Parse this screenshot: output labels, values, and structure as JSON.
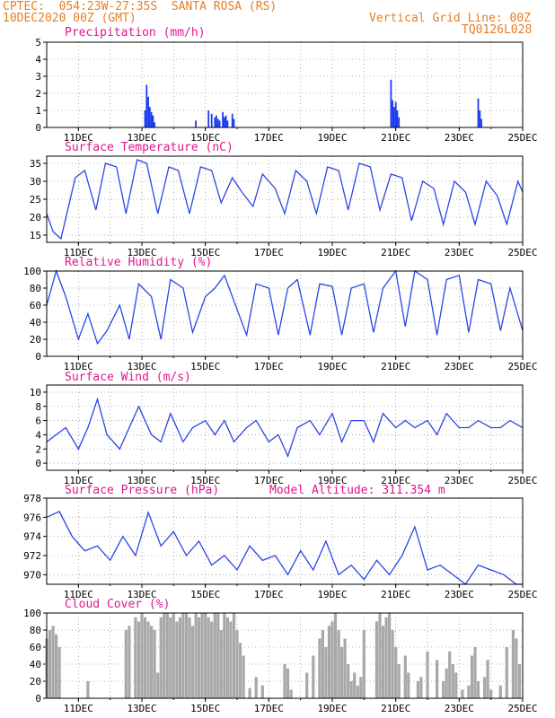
{
  "header": {
    "line1_left": "CPTEC:  054:23W-27:35S  SANTA ROSA (RS)",
    "line2_left": "10DEC2020 00Z (GMT)",
    "line1_right": "Vertical Grid Line: 00Z",
    "line2_right": "TQ0126L028"
  },
  "colors": {
    "header": "#e67e22",
    "title": "#e0178c",
    "line": "#2a46e6",
    "bar": "#1c3cf0",
    "cloud": "#a8a8a8"
  },
  "chart_data": [
    {
      "type": "bar",
      "title": "Precipitation (mm/h)",
      "x_tick_labels": [
        "11DEC",
        "13DEC",
        "15DEC",
        "17DEC",
        "19DEC",
        "21DEC",
        "23DEC",
        "25DEC"
      ],
      "x_day_range": [
        10,
        25
      ],
      "ylim": [
        0,
        5
      ],
      "y_ticks": [
        0,
        1,
        2,
        3,
        4,
        5
      ],
      "grid": true,
      "series": [
        {
          "x": [
            13.1,
            13.15,
            13.2,
            13.25,
            13.3,
            13.35,
            13.4,
            14.7,
            15.1,
            15.2,
            15.3,
            15.35,
            15.4,
            15.45,
            15.55,
            15.6,
            15.65,
            15.7,
            15.85,
            15.9,
            20.85,
            20.9,
            20.95,
            21.0,
            21.05,
            21.1,
            23.6,
            23.65,
            23.7
          ],
          "values": [
            1.0,
            2.5,
            1.8,
            1.2,
            0.9,
            0.7,
            0.3,
            0.4,
            1.0,
            0.8,
            0.6,
            0.7,
            0.5,
            0.4,
            0.9,
            0.6,
            0.7,
            0.4,
            0.8,
            0.5,
            2.8,
            1.6,
            1.2,
            1.5,
            1.0,
            0.6,
            1.7,
            1.0,
            0.5
          ]
        }
      ]
    },
    {
      "type": "line",
      "title": "Surface Temperature (nC)",
      "x_tick_labels": [
        "11DEC",
        "13DEC",
        "15DEC",
        "17DEC",
        "19DEC",
        "21DEC",
        "23DEC",
        "25DEC"
      ],
      "x_day_range": [
        10,
        25
      ],
      "ylim": [
        13,
        37
      ],
      "y_ticks": [
        15,
        20,
        25,
        30,
        35
      ],
      "grid": true,
      "series": [
        {
          "x": [
            10.0,
            10.2,
            10.45,
            10.9,
            11.2,
            11.55,
            11.85,
            12.2,
            12.5,
            12.85,
            13.15,
            13.5,
            13.85,
            14.15,
            14.5,
            14.85,
            15.2,
            15.5,
            15.85,
            16.15,
            16.5,
            16.8,
            17.2,
            17.5,
            17.85,
            18.2,
            18.5,
            18.85,
            19.2,
            19.5,
            19.85,
            20.2,
            20.5,
            20.85,
            21.2,
            21.5,
            21.85,
            22.2,
            22.5,
            22.85,
            23.2,
            23.5,
            23.85,
            24.2,
            24.5,
            24.85,
            25.0
          ],
          "values": [
            21,
            16,
            14,
            31,
            33,
            22,
            35,
            34,
            21,
            36,
            35,
            21,
            34,
            33,
            21,
            34,
            33,
            24,
            31,
            27,
            23,
            32,
            28,
            21,
            33,
            30,
            21,
            34,
            33,
            22,
            35,
            34,
            22,
            32,
            31,
            19,
            30,
            28,
            18,
            30,
            27,
            18,
            30,
            26,
            18,
            30,
            27
          ]
        }
      ]
    },
    {
      "type": "line",
      "title": "Relative Humidity (%)",
      "x_tick_labels": [
        "11DEC",
        "13DEC",
        "15DEC",
        "17DEC",
        "19DEC",
        "21DEC",
        "23DEC",
        "25DEC"
      ],
      "x_day_range": [
        10,
        25
      ],
      "ylim": [
        0,
        100
      ],
      "y_ticks": [
        0,
        20,
        40,
        60,
        80,
        100
      ],
      "grid": true,
      "series": [
        {
          "x": [
            10.0,
            10.3,
            10.6,
            11.0,
            11.3,
            11.6,
            11.9,
            12.3,
            12.6,
            12.9,
            13.3,
            13.6,
            13.9,
            14.3,
            14.6,
            15.0,
            15.3,
            15.6,
            15.9,
            16.3,
            16.6,
            17.0,
            17.3,
            17.6,
            17.9,
            18.3,
            18.6,
            19.0,
            19.3,
            19.6,
            20.0,
            20.3,
            20.6,
            21.0,
            21.3,
            21.6,
            22.0,
            22.3,
            22.6,
            23.0,
            23.3,
            23.6,
            24.0,
            24.3,
            24.6,
            25.0
          ],
          "values": [
            60,
            100,
            70,
            20,
            50,
            15,
            30,
            60,
            20,
            85,
            70,
            20,
            90,
            80,
            28,
            70,
            80,
            95,
            65,
            25,
            85,
            80,
            25,
            80,
            90,
            25,
            85,
            82,
            25,
            80,
            85,
            28,
            80,
            100,
            35,
            100,
            90,
            25,
            90,
            95,
            28,
            90,
            85,
            30,
            80,
            30
          ]
        }
      ]
    },
    {
      "type": "line",
      "title": "Surface Wind (m/s)",
      "x_tick_labels": [
        "11DEC",
        "13DEC",
        "15DEC",
        "17DEC",
        "19DEC",
        "21DEC",
        "23DEC",
        "25DEC"
      ],
      "x_day_range": [
        10,
        25
      ],
      "ylim": [
        -1,
        11
      ],
      "y_ticks": [
        0,
        2,
        4,
        6,
        8,
        10
      ],
      "grid": true,
      "series": [
        {
          "x": [
            10.0,
            10.3,
            10.6,
            11.0,
            11.3,
            11.6,
            11.9,
            12.3,
            12.6,
            12.9,
            13.3,
            13.6,
            13.9,
            14.3,
            14.6,
            15.0,
            15.3,
            15.6,
            15.9,
            16.3,
            16.6,
            17.0,
            17.3,
            17.6,
            17.9,
            18.3,
            18.6,
            19.0,
            19.3,
            19.6,
            20.0,
            20.3,
            20.6,
            21.0,
            21.3,
            21.6,
            22.0,
            22.3,
            22.6,
            23.0,
            23.3,
            23.6,
            24.0,
            24.3,
            24.6,
            25.0
          ],
          "values": [
            3,
            4,
            5,
            2,
            5,
            9,
            4,
            2,
            5,
            8,
            4,
            3,
            7,
            3,
            5,
            6,
            4,
            6,
            3,
            5,
            6,
            3,
            4,
            1,
            5,
            6,
            4,
            7,
            3,
            6,
            6,
            3,
            7,
            5,
            6,
            5,
            6,
            4,
            7,
            5,
            5,
            6,
            5,
            5,
            6,
            5
          ]
        }
      ]
    },
    {
      "type": "line",
      "title": "Surface Pressure (hPa)",
      "annotation": "Model Altitude: 311.354 m",
      "x_tick_labels": [
        "11DEC",
        "13DEC",
        "15DEC",
        "17DEC",
        "19DEC",
        "21DEC",
        "23DEC",
        "25DEC"
      ],
      "x_day_range": [
        10,
        25
      ],
      "ylim": [
        969,
        978
      ],
      "y_ticks": [
        970,
        972,
        974,
        976,
        978
      ],
      "grid": true,
      "series": [
        {
          "x": [
            10.0,
            10.4,
            10.8,
            11.2,
            11.6,
            12.0,
            12.4,
            12.8,
            13.2,
            13.6,
            14.0,
            14.4,
            14.8,
            15.2,
            15.6,
            16.0,
            16.4,
            16.8,
            17.2,
            17.6,
            18.0,
            18.4,
            18.8,
            19.2,
            19.6,
            20.0,
            20.4,
            20.8,
            21.2,
            21.6,
            22.0,
            22.4,
            22.8,
            23.2,
            23.6,
            24.0,
            24.4,
            24.8,
            25.0
          ],
          "values": [
            976,
            976.6,
            974,
            972.5,
            973,
            971.5,
            974,
            972,
            976.5,
            973,
            974.5,
            972,
            973.5,
            971,
            972,
            970.5,
            973,
            971.5,
            972,
            970,
            972.5,
            970.5,
            973.5,
            970,
            971,
            969.5,
            971.5,
            970,
            972,
            975,
            970.5,
            971,
            970,
            969,
            971,
            970.5,
            970,
            969,
            969
          ]
        }
      ]
    },
    {
      "type": "bar",
      "title": "Cloud Cover (%)",
      "x_tick_labels": [
        "11DEC",
        "13DEC",
        "15DEC",
        "17DEC",
        "19DEC",
        "21DEC",
        "23DEC",
        "25DEC"
      ],
      "x_day_range": [
        10,
        25
      ],
      "ylim": [
        0,
        100
      ],
      "y_ticks": [
        0,
        20,
        40,
        60,
        80,
        100
      ],
      "grid": true,
      "series": [
        {
          "x": [
            10.0,
            10.1,
            10.2,
            10.3,
            10.4,
            11.3,
            12.5,
            12.6,
            12.8,
            12.9,
            13.0,
            13.1,
            13.2,
            13.3,
            13.4,
            13.5,
            13.6,
            13.7,
            13.8,
            13.9,
            14.0,
            14.1,
            14.2,
            14.3,
            14.4,
            14.5,
            14.6,
            14.7,
            14.8,
            14.9,
            15.0,
            15.1,
            15.2,
            15.3,
            15.4,
            15.5,
            15.6,
            15.7,
            15.8,
            15.9,
            16.0,
            16.1,
            16.2,
            16.4,
            16.6,
            16.8,
            17.5,
            17.6,
            17.7,
            18.2,
            18.4,
            18.6,
            18.7,
            18.8,
            18.9,
            19.0,
            19.1,
            19.2,
            19.3,
            19.4,
            19.5,
            19.6,
            19.7,
            19.8,
            19.9,
            20.0,
            20.4,
            20.5,
            20.6,
            20.7,
            20.8,
            20.9,
            21.0,
            21.1,
            21.3,
            21.4,
            21.7,
            21.8,
            22.0,
            22.3,
            22.5,
            22.6,
            22.7,
            22.8,
            22.9,
            23.1,
            23.3,
            23.4,
            23.5,
            23.6,
            23.8,
            23.9,
            24.0,
            24.3,
            24.5,
            24.7,
            24.8,
            24.9
          ],
          "values": [
            70,
            80,
            85,
            75,
            60,
            20,
            80,
            85,
            95,
            90,
            100,
            95,
            90,
            85,
            80,
            30,
            95,
            100,
            100,
            95,
            100,
            90,
            95,
            100,
            100,
            95,
            85,
            100,
            95,
            100,
            100,
            95,
            90,
            100,
            100,
            80,
            100,
            95,
            90,
            100,
            80,
            65,
            50,
            12,
            25,
            15,
            40,
            35,
            10,
            30,
            50,
            70,
            80,
            60,
            85,
            90,
            100,
            80,
            60,
            70,
            40,
            20,
            30,
            15,
            25,
            80,
            90,
            100,
            85,
            95,
            100,
            80,
            60,
            40,
            50,
            30,
            20,
            25,
            55,
            45,
            20,
            35,
            55,
            40,
            30,
            10,
            15,
            50,
            60,
            20,
            25,
            45,
            10,
            15,
            60,
            80,
            70,
            40
          ]
        }
      ]
    }
  ]
}
